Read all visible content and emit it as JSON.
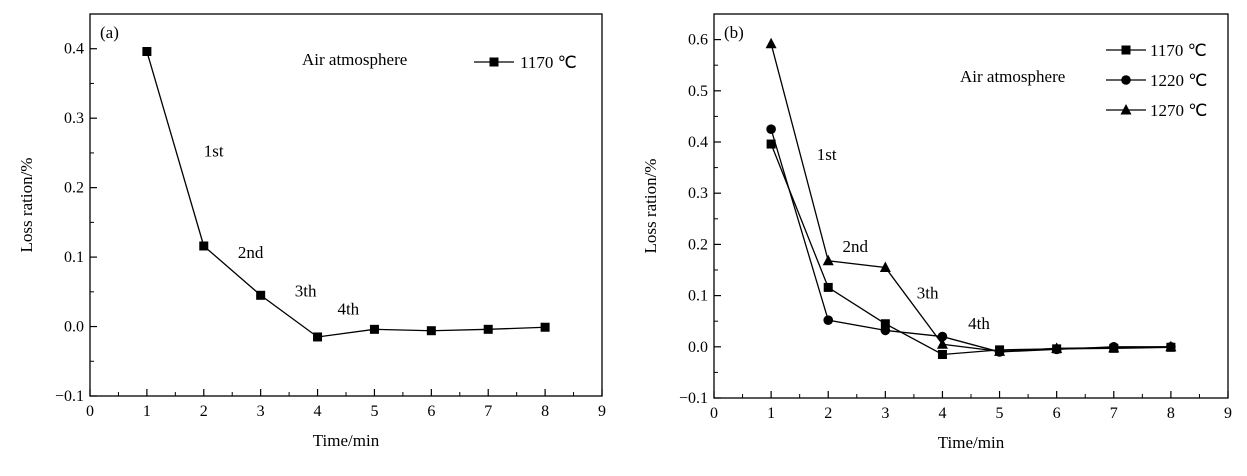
{
  "chart_data": [
    {
      "type": "line",
      "panel_label": "(a)",
      "xlabel": "Time/min",
      "ylabel": "Loss ration/%",
      "xlim": [
        0,
        9
      ],
      "ylim": [
        -0.1,
        0.45
      ],
      "xticks": [
        0,
        1,
        2,
        3,
        4,
        5,
        6,
        7,
        8,
        9
      ],
      "yticks": [
        -0.1,
        0.0,
        0.1,
        0.2,
        0.3,
        0.4
      ],
      "ytick_labels": [
        "−0.1",
        "0.0",
        "0.1",
        "0.2",
        "0.3",
        "0.4"
      ],
      "grid": false,
      "legend_position": "top-right",
      "atmosphere_label": "Air atmosphere",
      "annotations": [
        {
          "text": "1st",
          "x": 2.0,
          "y": 0.245
        },
        {
          "text": "2nd",
          "x": 2.6,
          "y": 0.099
        },
        {
          "text": "3th",
          "x": 3.6,
          "y": 0.043
        },
        {
          "text": "4th",
          "x": 4.35,
          "y": 0.017
        }
      ],
      "series": [
        {
          "name": "1170 ℃",
          "marker": "square",
          "x": [
            1,
            2,
            3,
            4,
            5,
            6,
            7,
            8
          ],
          "y": [
            0.396,
            0.116,
            0.045,
            -0.015,
            -0.004,
            -0.006,
            -0.004,
            -0.001
          ]
        }
      ]
    },
    {
      "type": "line",
      "panel_label": "(b)",
      "xlabel": "Time/min",
      "ylabel": "Loss ration/%",
      "xlim": [
        0,
        9
      ],
      "ylim": [
        -0.1,
        0.65
      ],
      "xticks": [
        0,
        1,
        2,
        3,
        4,
        5,
        6,
        7,
        8,
        9
      ],
      "yticks": [
        -0.1,
        0.0,
        0.1,
        0.2,
        0.3,
        0.4,
        0.5,
        0.6
      ],
      "ytick_labels": [
        "−0.1",
        "0.0",
        "0.1",
        "0.2",
        "0.3",
        "0.4",
        "0.5",
        "0.6"
      ],
      "grid": false,
      "legend_position": "top-right",
      "atmosphere_label": "Air atmosphere",
      "annotations": [
        {
          "text": "1st",
          "x": 1.8,
          "y": 0.365
        },
        {
          "text": "2nd",
          "x": 2.25,
          "y": 0.185
        },
        {
          "text": "3th",
          "x": 3.55,
          "y": 0.094
        },
        {
          "text": "4th",
          "x": 4.45,
          "y": 0.035
        }
      ],
      "series": [
        {
          "name": "1170 ℃",
          "marker": "square",
          "x": [
            1,
            2,
            3,
            4,
            5,
            6,
            7,
            8
          ],
          "y": [
            0.396,
            0.116,
            0.045,
            -0.015,
            -0.006,
            -0.004,
            -0.003,
            -0.001
          ]
        },
        {
          "name": "1220 ℃",
          "marker": "circle",
          "x": [
            1,
            2,
            3,
            4,
            5,
            6,
            7,
            8
          ],
          "y": [
            0.425,
            0.052,
            0.032,
            0.02,
            -0.01,
            -0.005,
            0.0,
            0.0
          ]
        },
        {
          "name": "1270 ℃",
          "marker": "triangle",
          "x": [
            1,
            2,
            3,
            4,
            5,
            6,
            7,
            8
          ],
          "y": [
            0.592,
            0.168,
            0.155,
            0.005,
            -0.009,
            -0.003,
            -0.002,
            0.0
          ]
        }
      ]
    }
  ]
}
